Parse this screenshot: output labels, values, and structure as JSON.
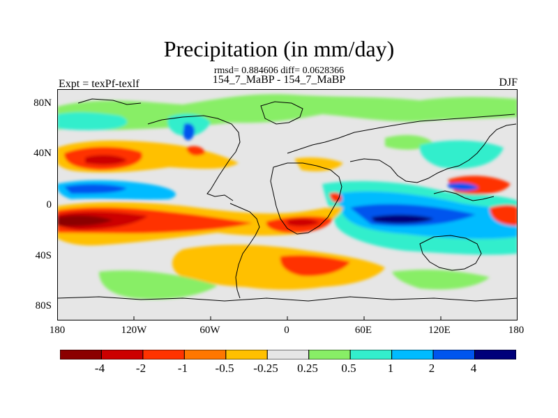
{
  "title": "Precipitation (in mm/day)",
  "stats_line": "rmsd= 0.884606 diff= 0.0628366",
  "case_line": "154_7_MaBP - 154_7_MaBP",
  "expt_label": "Expt = texPf-texlf",
  "season": "DJF",
  "axes": {
    "y_ticks": [
      "80N",
      "40N",
      "0",
      "40S",
      "80S"
    ],
    "x_ticks": [
      "180",
      "120W",
      "60W",
      "0",
      "60E",
      "120E",
      "180"
    ]
  },
  "colorbar": {
    "colors": [
      "#8b0000",
      "#cc0000",
      "#ff3300",
      "#ff7700",
      "#ffc000",
      "#e6e6e6",
      "#88ee66",
      "#33eecc",
      "#00bbff",
      "#0055ee",
      "#00007a"
    ],
    "labels": [
      "-4",
      "-2",
      "-1",
      "-0.5",
      "-0.25",
      "0.25",
      "0.5",
      "1",
      "2",
      "4"
    ]
  },
  "palette": {
    "background": "#e6e6e6",
    "coast": "#000000"
  }
}
